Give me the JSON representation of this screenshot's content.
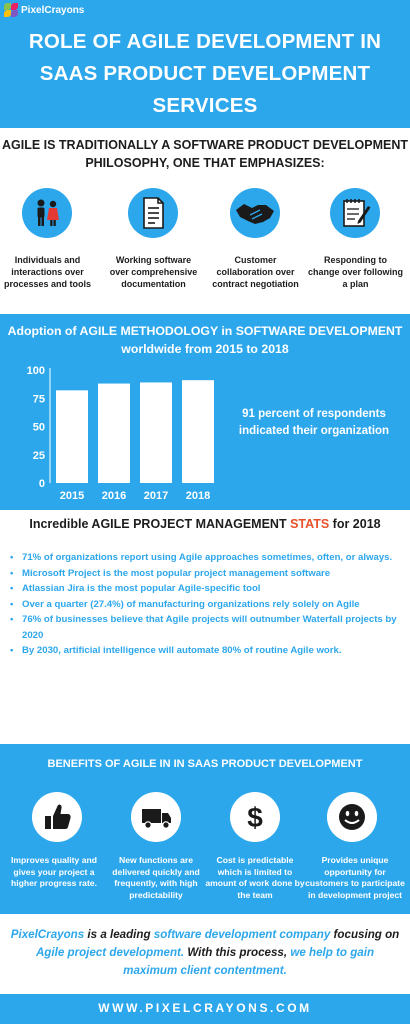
{
  "brand": {
    "logo_text": "PixelCrayons",
    "accent": "#2da7ec",
    "highlight": "#e9502a"
  },
  "header": {
    "title": "ROLE OF AGILE DEVELOPMENT IN SAAS PRODUCT DEVELOPMENT SERVICES"
  },
  "philosophy": {
    "heading": "AGILE IS TRADITIONALLY A SOFTWARE PRODUCT DEVELOPMENT PHILOSOPHY, ONE THAT EMPHASIZES:",
    "items": [
      {
        "icon": "people-icon",
        "caption": "Individuals and interactions over processes and tools"
      },
      {
        "icon": "document-icon",
        "caption": "Working software over comprehensive documentation"
      },
      {
        "icon": "handshake-icon",
        "caption": "Customer collaboration over contract negotiation"
      },
      {
        "icon": "notepad-pencil-icon",
        "caption": "Responding to change over following a plan"
      }
    ]
  },
  "adoption": {
    "title": "Adoption of AGILE METHODOLOGY in SOFTWARE DEVELOPMENT worldwide from 2015 to 2018",
    "note": "91 percent of respondents indicated their organization"
  },
  "chart_data": {
    "type": "bar",
    "categories": [
      "2015",
      "2016",
      "2017",
      "2018"
    ],
    "values": [
      82,
      88,
      89,
      91
    ],
    "ylim": [
      0,
      100
    ],
    "yticks": [
      "100",
      "75",
      "50",
      "25",
      "0"
    ],
    "ytick_values": [
      100,
      75,
      50,
      25,
      0
    ],
    "grid": false,
    "bar_color": "#ffffff"
  },
  "stats": {
    "title_prefix": "Incredible AGILE PROJECT MANAGEMENT ",
    "title_highlight": "STATS",
    "title_suffix": " for 2018",
    "items": [
      "71% of organizations report using Agile approaches sometimes, often, or always.",
      "Microsoft Project is the most popular project management software",
      "Atlassian Jira is the most popular Agile-specific tool",
      "Over a quarter (27.4%) of manufacturing organizations rely solely on Agile",
      "76% of businesses believe that Agile projects will outnumber Waterfall projects by 2020",
      "By 2030, artificial intelligence will automate 80% of routine Agile work."
    ]
  },
  "benefits": {
    "title": "BENEFITS OF AGILE IN  IN SAAS PRODUCT DEVELOPMENT",
    "items": [
      {
        "icon": "thumbs-up-icon",
        "caption": "Improves quality and gives your project a higher progress rate."
      },
      {
        "icon": "truck-icon",
        "caption": "New functions are delivered quickly and frequently, with high predictability"
      },
      {
        "icon": "dollar-icon",
        "caption": "Cost is predictable which is limited to amount of work done by the team"
      },
      {
        "icon": "smiley-icon",
        "caption": "Provides unique opportunity for customers to participate in development project"
      }
    ]
  },
  "closing": {
    "p1": "PixelCrayons",
    "p2": " is a leading ",
    "p3": "software development company",
    "p4": " focusing on ",
    "p5": "Agile project development.",
    "p6": " With this process, ",
    "p7": "we help to gain maximum client contentment."
  },
  "footer": {
    "url": "WWW.PIXELCRAYONS.COM"
  }
}
